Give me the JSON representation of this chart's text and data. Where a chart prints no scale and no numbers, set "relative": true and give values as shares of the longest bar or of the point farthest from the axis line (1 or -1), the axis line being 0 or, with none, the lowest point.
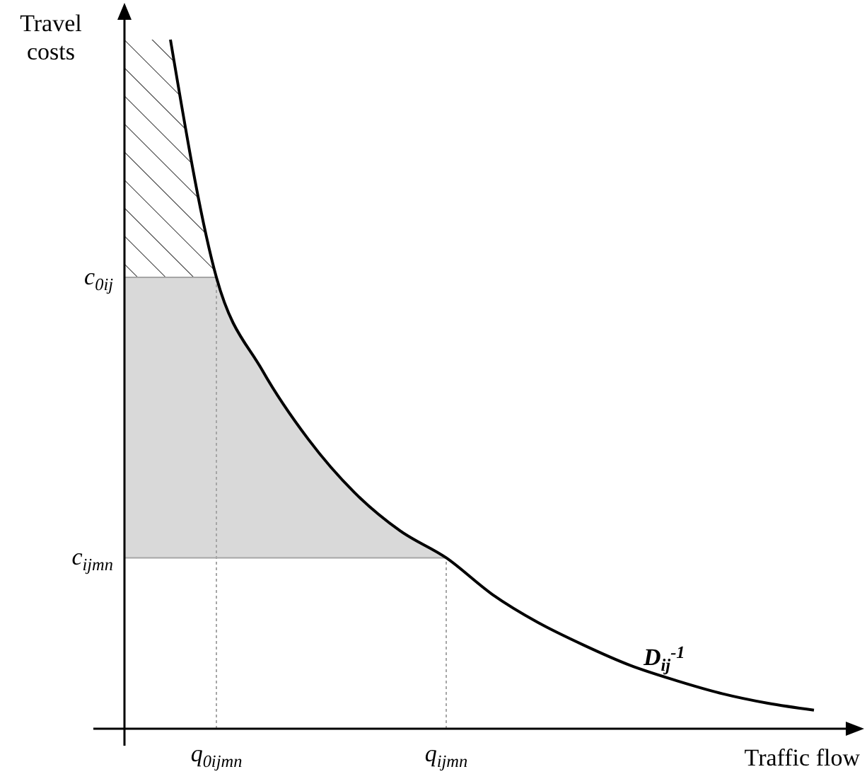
{
  "chart_data": {
    "type": "line",
    "relative": true,
    "xlabel": "Traffic flow",
    "ylabel": "Travel\ncosts",
    "categories": [
      null,
      "q$_{0ijmn}$",
      null,
      null,
      null,
      null,
      "q$_{ijmn}$",
      null,
      null,
      null,
      null,
      null,
      null,
      null,
      null
    ],
    "series": [
      {
        "color": "#000000",
        "values": [
          1,
          0.655,
          0.52,
          0.42,
          0.343,
          0.287,
          0.248,
          0.195,
          0.154,
          0.121,
          0.092,
          0.07,
          0.051,
          0.037,
          0.027
        ]
      }
    ],
    "line_style": "solid",
    "ref_lines": [
      {
        "axis": "y",
        "value": 0.655,
        "label": "c$_{0ij}$",
        "color": "#a6a6a6",
        "line_style": "solid"
      },
      {
        "axis": "y",
        "value": 0.248,
        "label": "c$_{ijmn}$",
        "color": "#a6a6a6",
        "line_style": "solid"
      },
      {
        "axis": "x",
        "value": "q$_{0ijmn}$",
        "color": "#a6a6a6",
        "line_style": "dotted"
      },
      {
        "axis": "x",
        "value": "q$_{ijmn}$",
        "color": "#a6a6a6",
        "line_style": "dotted"
      }
    ],
    "bands": [
      {
        "axis": "y",
        "from": 0.248,
        "to": 0.655,
        "color": "#d9d9d9"
      },
      {
        "axis": "y",
        "from": 0.655,
        "to": 1
      }
    ],
    "annotations": [
      "D$_{ij}$$^{-1}$"
    ]
  }
}
